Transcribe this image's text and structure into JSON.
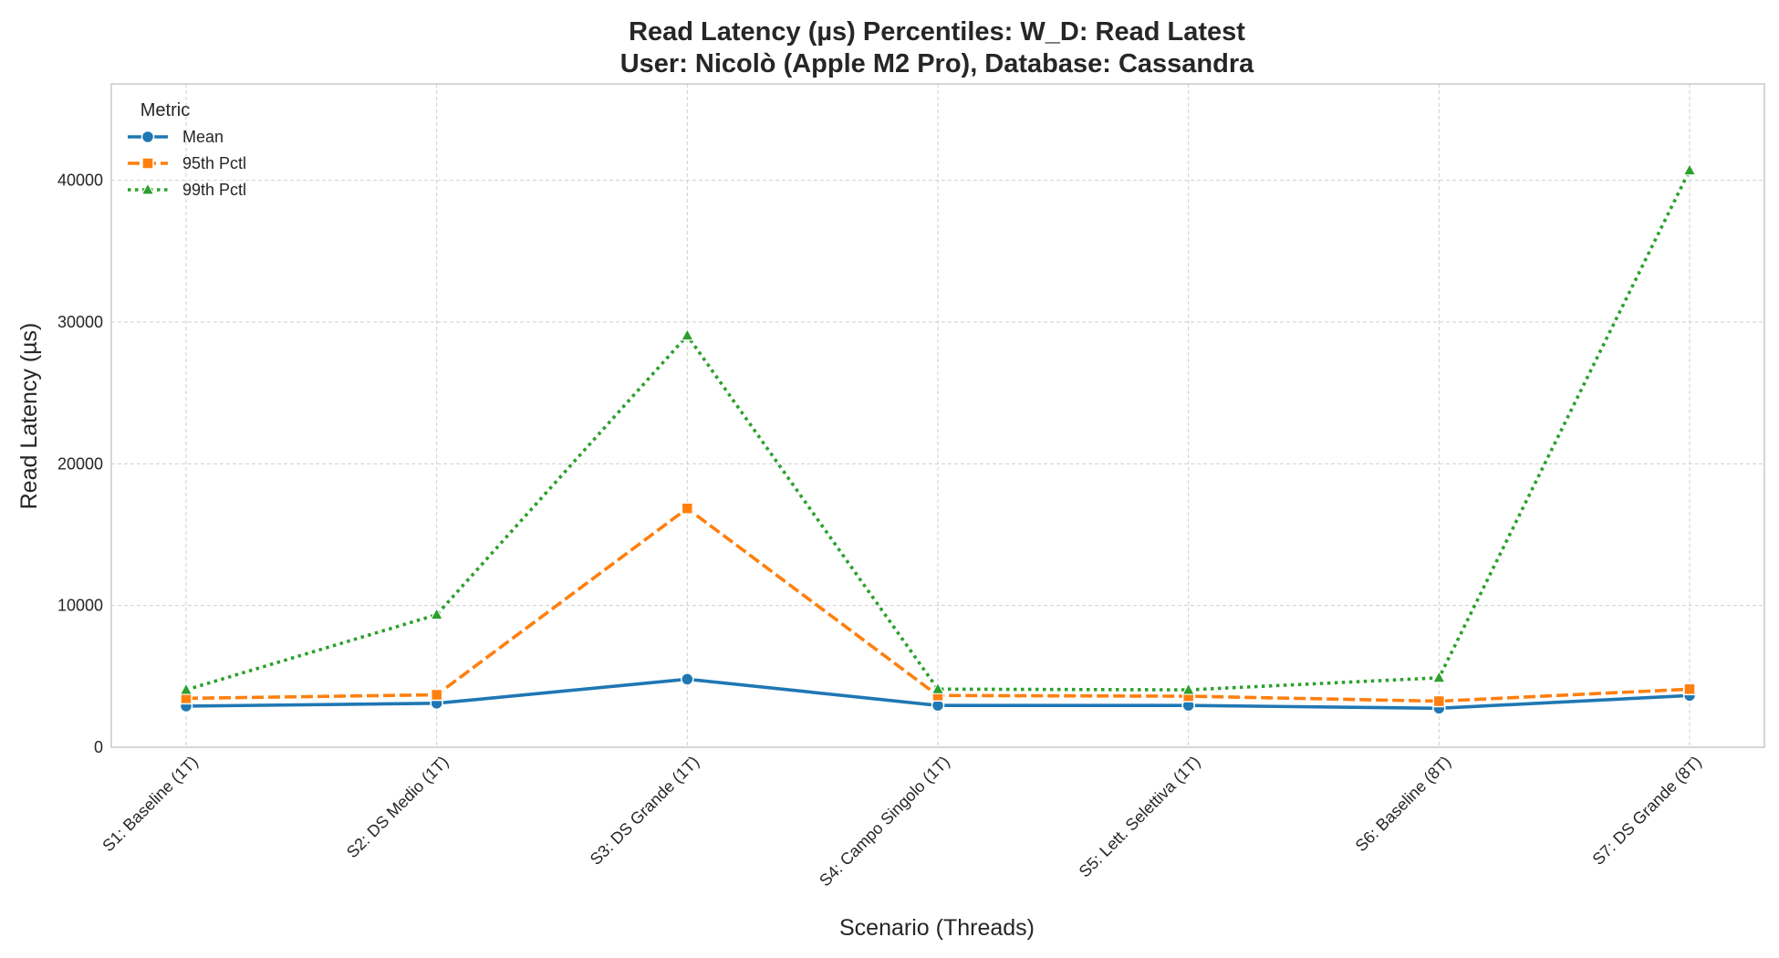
{
  "chart_data": {
    "type": "line",
    "title_line1": "Read Latency (µs) Percentiles: W_D: Read Latest",
    "title_line2": "User: Nicolò (Apple M2 Pro), Database: Cassandra",
    "xlabel": "Scenario (Threads)",
    "ylabel": "Read Latency (µs)",
    "ylim": [
      0,
      46800
    ],
    "yticks": [
      0,
      10000,
      20000,
      30000,
      40000
    ],
    "grid": true,
    "legend_title": "Metric",
    "legend_position": "top-left",
    "categories": [
      "S1: Baseline (1T)",
      "S2: DS Medio (1T)",
      "S3: DS Grande (1T)",
      "S4: Campo Singolo (1T)",
      "S5: Lett. Selettiva (1T)",
      "S6: Baseline (8T)",
      "S7: DS Grande (8T)"
    ],
    "series": [
      {
        "name": "Mean",
        "color": "#1f77b4",
        "dash": "solid",
        "marker": "circle",
        "values": [
          2900,
          3100,
          4800,
          2950,
          2950,
          2750,
          3650
        ]
      },
      {
        "name": "95th Pctl",
        "color": "#ff7f0e",
        "dash": "dashed",
        "marker": "square",
        "values": [
          3450,
          3700,
          16850,
          3650,
          3600,
          3250,
          4100
        ]
      },
      {
        "name": "99th Pctl",
        "color": "#2ca02c",
        "dash": "dotted",
        "marker": "triangle",
        "values": [
          4050,
          9350,
          29050,
          4100,
          4050,
          4900,
          40700
        ]
      }
    ]
  }
}
